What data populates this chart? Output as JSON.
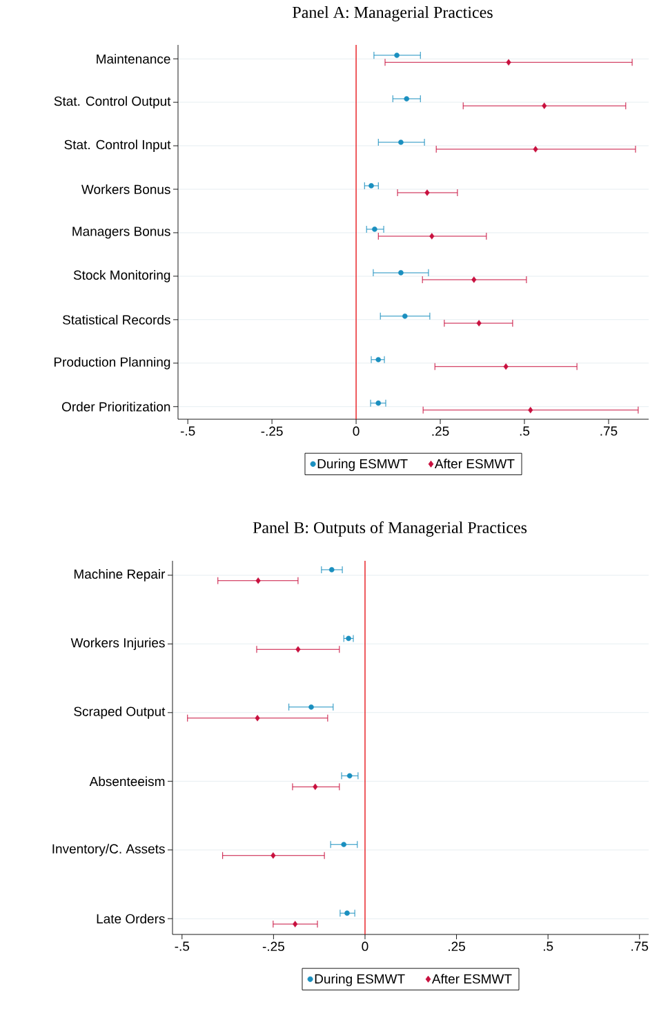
{
  "chart_data": [
    {
      "type": "scatter",
      "orientation": "horizontal",
      "title": "Panel A: Managerial Practices",
      "categories": [
        "Maintenance",
        "Stat. Control Output",
        "Stat. Control Input",
        "Workers Bonus",
        "Managers Bonus",
        "Stock Monitoring",
        "Statistical Records",
        "Production Planning",
        "Order Prioritization"
      ],
      "series": [
        {
          "name": "During ESMWT",
          "color": "#1a8fbf",
          "marker": "circle",
          "values": [
            0.121,
            0.15,
            0.133,
            0.045,
            0.055,
            0.133,
            0.145,
            0.066,
            0.066
          ],
          "errors": [
            [
              0.053,
              0.191
            ],
            [
              0.109,
              0.191
            ],
            [
              0.066,
              0.203
            ],
            [
              0.025,
              0.066
            ],
            [
              0.031,
              0.082
            ],
            [
              0.051,
              0.215
            ],
            [
              0.072,
              0.219
            ],
            [
              0.045,
              0.084
            ],
            [
              0.043,
              0.088
            ]
          ]
        },
        {
          "name": "After ESMWT",
          "color": "#c8103e",
          "marker": "diamond",
          "values": [
            0.453,
            0.559,
            0.533,
            0.211,
            0.225,
            0.35,
            0.365,
            0.445,
            0.518
          ],
          "errors": [
            [
              0.086,
              0.82
            ],
            [
              0.318,
              0.801
            ],
            [
              0.238,
              0.83
            ],
            [
              0.123,
              0.301
            ],
            [
              0.066,
              0.387
            ],
            [
              0.197,
              0.506
            ],
            [
              0.262,
              0.465
            ],
            [
              0.234,
              0.656
            ],
            [
              0.199,
              0.838
            ]
          ]
        }
      ],
      "xlim": [
        -0.529,
        0.869
      ],
      "xticks": [
        {
          "value": -0.5,
          "label": "-.5"
        },
        {
          "value": -0.25,
          "label": "-.25"
        },
        0,
        {
          "value": 0.25,
          "label": ".25"
        },
        {
          "value": 0.5,
          "label": ".5"
        },
        {
          "value": 0.75,
          "label": ".75"
        }
      ],
      "ref_lines": [
        {
          "axis": "x",
          "value": 0,
          "color": "#e8161b"
        }
      ],
      "grid": "y",
      "legend": "bottom"
    },
    {
      "type": "scatter",
      "orientation": "horizontal",
      "title": "Panel B: Outputs of Managerial Practices",
      "categories": [
        "Machine Repair",
        "Workers Injuries",
        "Scraped Output",
        "Absenteeism",
        "Inventory/C. Assets",
        "Late Orders"
      ],
      "series": [
        {
          "name": "During ESMWT",
          "color": "#1a8fbf",
          "marker": "circle",
          "values": [
            -0.091,
            -0.045,
            -0.147,
            -0.042,
            -0.058,
            -0.049
          ],
          "errors": [
            [
              -0.119,
              -0.062
            ],
            [
              -0.058,
              -0.032
            ],
            [
              -0.208,
              -0.087
            ],
            [
              -0.064,
              -0.019
            ],
            [
              -0.094,
              -0.021
            ],
            [
              -0.068,
              -0.028
            ]
          ]
        },
        {
          "name": "After ESMWT",
          "color": "#c8103e",
          "marker": "diamond",
          "values": [
            -0.292,
            -0.183,
            -0.294,
            -0.136,
            -0.251,
            -0.191
          ],
          "errors": [
            [
              -0.402,
              -0.183
            ],
            [
              -0.296,
              -0.07
            ],
            [
              -0.485,
              -0.102
            ],
            [
              -0.198,
              -0.07
            ],
            [
              -0.389,
              -0.111
            ],
            [
              -0.251,
              -0.13
            ]
          ]
        }
      ],
      "xlim": [
        -0.526,
        0.775
      ],
      "xticks": [
        {
          "value": -0.5,
          "label": "-.5"
        },
        {
          "value": -0.25,
          "label": "-.25"
        },
        0,
        {
          "value": 0.25,
          "label": ".25"
        },
        {
          "value": 0.5,
          "label": ".5"
        },
        {
          "value": 0.75,
          "label": ".75"
        }
      ],
      "ref_lines": [
        {
          "axis": "x",
          "value": 0,
          "color": "#e8161b"
        }
      ],
      "grid": "y",
      "legend": "bottom"
    }
  ]
}
